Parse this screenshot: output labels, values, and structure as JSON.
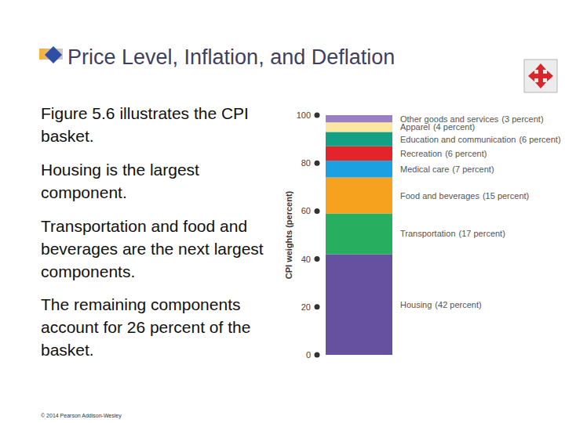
{
  "slide": {
    "title": "Price Level, Inflation, and Deflation",
    "bullets": [
      "Figure 5.6 illustrates the CPI basket.",
      "Housing is the largest component.",
      "Transportation and food and beverages are the next largest components.",
      "The remaining components account for 26 percent of the basket."
    ],
    "footer": "© 2014 Pearson Addison-Wesley"
  },
  "chart_data": {
    "type": "bar",
    "stacked": true,
    "data_labels": true,
    "tick_labels": "y",
    "y_label": "CPI weights (percent)",
    "categories": [
      null
    ],
    "ylim": [
      0,
      100
    ],
    "yticks": [
      0,
      20,
      40,
      60,
      80,
      100
    ],
    "series": [
      {
        "name": "Housing",
        "color": "#6650a0",
        "values": [
          42
        ],
        "value_labels": [
          "(42 percent)"
        ]
      },
      {
        "name": "Transportation",
        "color": "#27ae5f",
        "values": [
          17
        ],
        "value_labels": [
          "(17 percent)"
        ]
      },
      {
        "name": "Food and beverages",
        "color": "#f6a21e",
        "values": [
          15
        ],
        "value_labels": [
          "(15 percent)"
        ]
      },
      {
        "name": "Medical care",
        "color": "#1ba0e2",
        "values": [
          7
        ],
        "value_labels": [
          "(7 percent)"
        ]
      },
      {
        "name": "Recreation",
        "color": "#e3242b",
        "values": [
          6
        ],
        "value_labels": [
          "(6 percent)"
        ]
      },
      {
        "name": "Education and communication",
        "color": "#14a085",
        "values": [
          6
        ],
        "value_labels": [
          "(6 percent)"
        ]
      },
      {
        "name": "Apparel",
        "color": "#fbe6a2",
        "values": [
          4
        ],
        "value_labels": [
          "(4 percent)"
        ]
      },
      {
        "name": "Other goods and services",
        "color": "#9b7fc4",
        "values": [
          3
        ],
        "value_labels": [
          "(3 percent)"
        ]
      }
    ]
  }
}
